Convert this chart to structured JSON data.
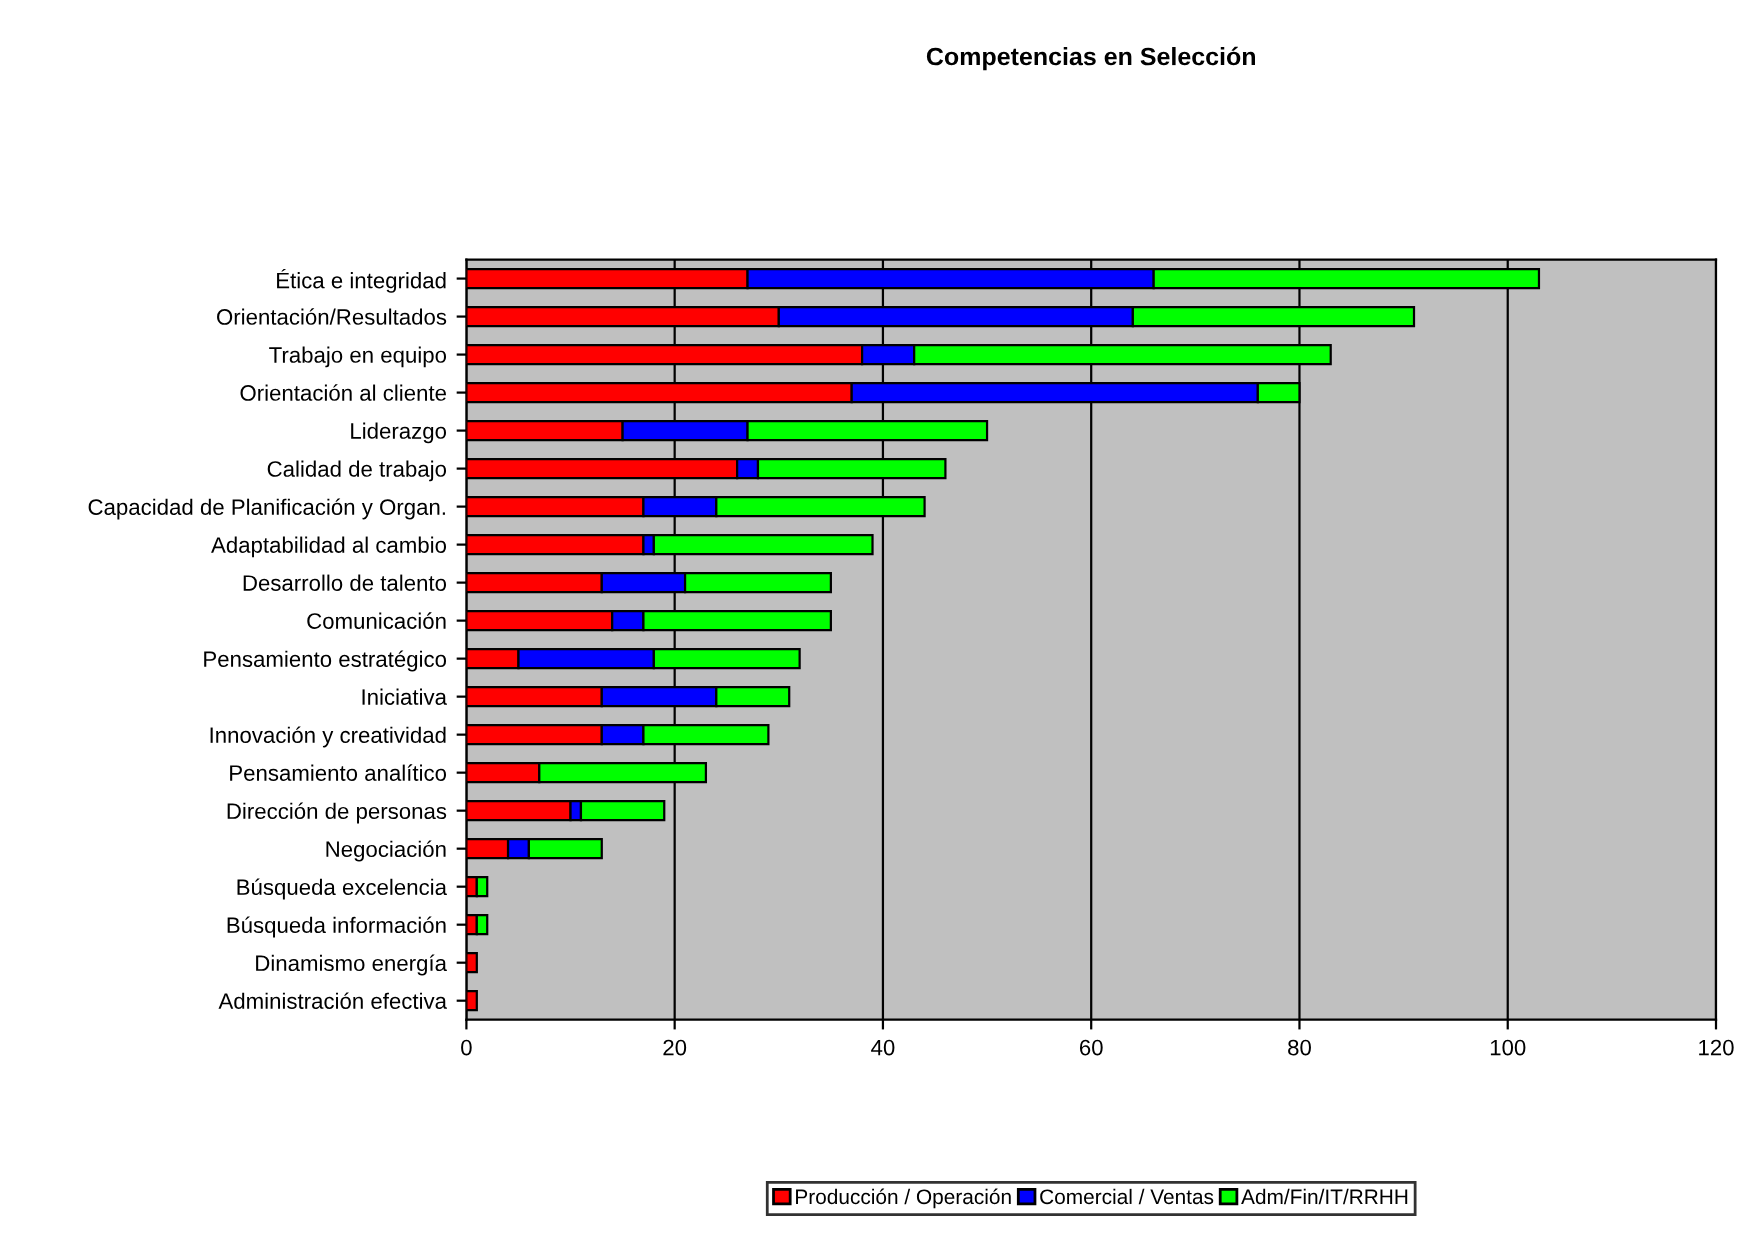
{
  "chart_data": {
    "type": "bar",
    "orientation": "horizontal",
    "stacked": true,
    "title": "Competencias en Selección",
    "categories": [
      "Ética e integridad",
      "Orientación/Resultados",
      "Trabajo en equipo",
      "Orientación al cliente",
      "Liderazgo",
      "Calidad de trabajo",
      "Capacidad de Planificación y Organ.",
      "Adaptabilidad al cambio",
      "Desarrollo de talento",
      "Comunicación",
      "Pensamiento estratégico",
      "Iniciativa",
      "Innovación y creatividad",
      "Pensamiento analítico",
      "Dirección de personas",
      "Negociación",
      "Búsqueda excelencia",
      "Búsqueda información",
      "Dinamismo energía",
      "Administración efectiva"
    ],
    "series": [
      {
        "name": "Producción / Operación",
        "color": "#ff0000",
        "values": [
          27,
          30,
          38,
          37,
          15,
          26,
          17,
          17,
          13,
          14,
          5,
          13,
          13,
          7,
          10,
          4,
          1,
          1,
          1,
          1
        ]
      },
      {
        "name": "Comercial / Ventas",
        "color": "#0000ff",
        "values": [
          39,
          34,
          5,
          39,
          12,
          2,
          7,
          1,
          8,
          3,
          13,
          11,
          4,
          0,
          1,
          2,
          0,
          0,
          0,
          0
        ]
      },
      {
        "name": "Adm/Fin/IT/RRHH",
        "color": "#00ff00",
        "values": [
          37,
          27,
          40,
          4,
          23,
          18,
          20,
          21,
          14,
          18,
          14,
          7,
          12,
          16,
          8,
          7,
          1,
          1,
          0,
          0
        ]
      }
    ],
    "xlim": [
      0,
      120
    ],
    "xticks": [
      0,
      20,
      40,
      60,
      80,
      100,
      120
    ],
    "grid": "x",
    "legend": "bottom"
  }
}
